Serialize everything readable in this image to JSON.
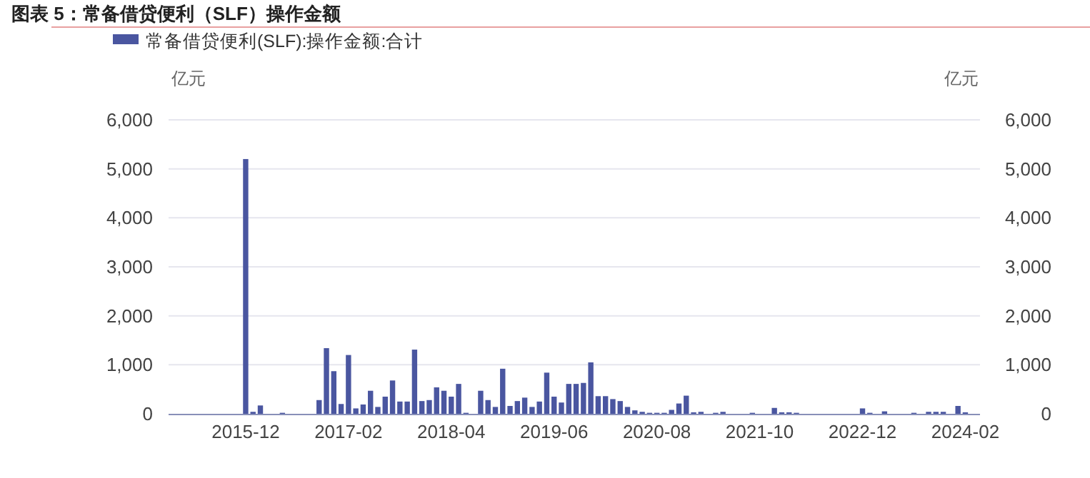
{
  "chart_data": {
    "type": "bar",
    "title": "图表 5：常备借贷便利（SLF）操作金额",
    "ylabel": "亿元",
    "y2label": "亿元",
    "categories": [
      null,
      null,
      null,
      null,
      null,
      null,
      null,
      null,
      null,
      null,
      "2015-12",
      null,
      null,
      null,
      null,
      null,
      null,
      null,
      null,
      null,
      null,
      null,
      null,
      null,
      "2017-02",
      null,
      null,
      null,
      null,
      null,
      null,
      null,
      null,
      null,
      null,
      null,
      null,
      null,
      "2018-04",
      null,
      null,
      null,
      null,
      null,
      null,
      null,
      null,
      null,
      null,
      null,
      null,
      null,
      "2019-06",
      null,
      null,
      null,
      null,
      null,
      null,
      null,
      null,
      null,
      null,
      null,
      null,
      null,
      "2020-08",
      null,
      null,
      null,
      null,
      null,
      null,
      null,
      null,
      null,
      null,
      null,
      null,
      null,
      "2021-10",
      null,
      null,
      null,
      null,
      null,
      null,
      null,
      null,
      null,
      null,
      null,
      null,
      null,
      "2022-12",
      null,
      null,
      null,
      null,
      null,
      null,
      null,
      null,
      null,
      null,
      null,
      null,
      null,
      "2024-02"
    ],
    "series": [
      {
        "name": "常备借贷便利(SLF):操作金额:合计",
        "color": "#4a56a0",
        "values": [
          0,
          0,
          0,
          0,
          0,
          0,
          0,
          0,
          0,
          0,
          5200,
          40,
          170,
          0,
          0,
          20,
          0,
          0,
          0,
          0,
          280,
          1340,
          870,
          200,
          1200,
          110,
          190,
          470,
          140,
          350,
          680,
          250,
          250,
          1310,
          260,
          280,
          540,
          470,
          350,
          610,
          20,
          0,
          470,
          280,
          140,
          920,
          160,
          260,
          330,
          140,
          250,
          840,
          350,
          230,
          610,
          610,
          630,
          1050,
          360,
          360,
          300,
          260,
          140,
          70,
          40,
          20,
          20,
          20,
          80,
          210,
          370,
          30,
          40,
          0,
          20,
          40,
          0,
          0,
          0,
          20,
          0,
          0,
          120,
          30,
          30,
          20,
          0,
          0,
          0,
          0,
          0,
          0,
          0,
          0,
          110,
          20,
          0,
          50,
          0,
          0,
          0,
          20,
          0,
          40,
          40,
          40,
          0,
          160,
          30
        ]
      }
    ],
    "ylim": [
      0,
      6000
    ],
    "yticks": [
      0,
      {
        "value": 1000,
        "label": "1,000"
      },
      {
        "value": 2000,
        "label": "2,000"
      },
      {
        "value": 3000,
        "label": "3,000"
      },
      {
        "value": 4000,
        "label": "4,000"
      },
      {
        "value": 5000,
        "label": "5,000"
      },
      {
        "value": 6000,
        "label": "6,000"
      }
    ],
    "y2lim": [
      0,
      6000
    ],
    "y2ticks": [
      0,
      {
        "value": 1000,
        "label": "1,000"
      },
      {
        "value": 2000,
        "label": "2,000"
      },
      {
        "value": 3000,
        "label": "3,000"
      },
      {
        "value": 4000,
        "label": "4,000"
      },
      {
        "value": 5000,
        "label": "5,000"
      },
      {
        "value": 6000,
        "label": "6,000"
      }
    ],
    "grid": "y",
    "legend": "top"
  }
}
